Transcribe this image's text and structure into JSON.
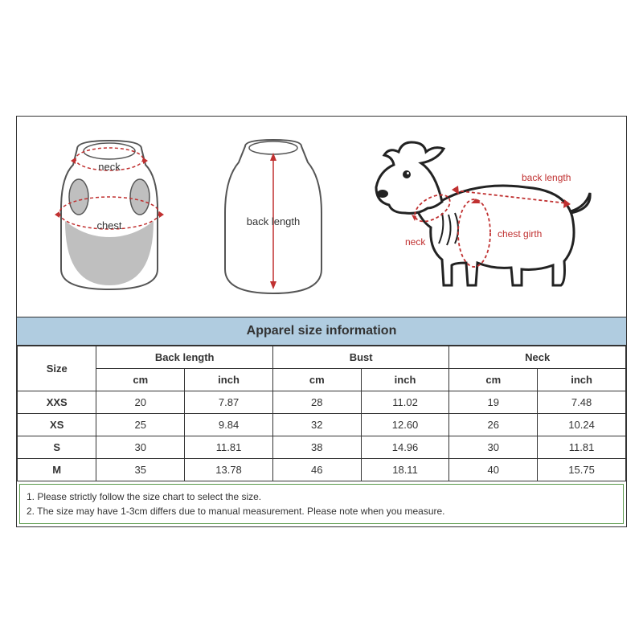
{
  "title": "Apparel  size  information",
  "diagram_labels": {
    "vest_neck": "neck",
    "vest_chest": "chest",
    "back_length": "back length",
    "dog_neck": "neck",
    "dog_back": "back length",
    "dog_chest": "chest girth"
  },
  "colors": {
    "header_bg": "#b0cce0",
    "diagram_line": "#555555",
    "diagram_fill": "#bfbfbf",
    "measure_line": "#c03030",
    "note_border": "#5a9a4a"
  },
  "table": {
    "size_header": "Size",
    "group_headers": [
      "Back length",
      "Bust",
      "Neck"
    ],
    "sub_headers": [
      "cm",
      "inch",
      "cm",
      "inch",
      "cm",
      "inch"
    ],
    "rows": [
      {
        "size": "XXS",
        "vals": [
          "20",
          "7.87",
          "28",
          "11.02",
          "19",
          "7.48"
        ]
      },
      {
        "size": "XS",
        "vals": [
          "25",
          "9.84",
          "32",
          "12.60",
          "26",
          "10.24"
        ]
      },
      {
        "size": "S",
        "vals": [
          "30",
          "11.81",
          "38",
          "14.96",
          "30",
          "11.81"
        ]
      },
      {
        "size": "M",
        "vals": [
          "35",
          "13.78",
          "46",
          "18.11",
          "40",
          "15.75"
        ]
      }
    ]
  },
  "notes": [
    "1. Please strictly follow the size chart  to select the size.",
    "2. The size may have 1-3cm differs due to manual measurement. Please note when you measure."
  ]
}
